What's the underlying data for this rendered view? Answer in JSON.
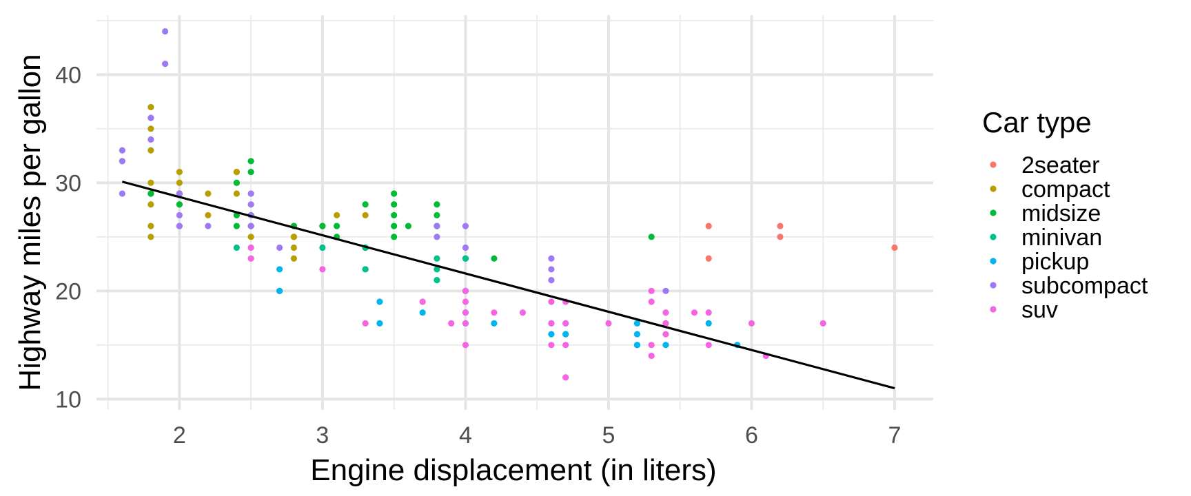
{
  "chart_data": {
    "type": "scatter",
    "title": "",
    "xlabel": "Engine displacement (in liters)",
    "ylabel": "Highway miles per gallon",
    "xlim": [
      1.42,
      7.27
    ],
    "ylim": [
      9.0,
      45.5
    ],
    "x_ticks": [
      2,
      3,
      4,
      5,
      6,
      7
    ],
    "y_ticks": [
      10,
      20,
      30,
      40
    ],
    "grid": true,
    "legend": {
      "title": "Car type",
      "placement": "right"
    },
    "trend_line": {
      "from": [
        1.6,
        30.1
      ],
      "to": [
        7.0,
        11.0
      ],
      "color": "#000000"
    },
    "series": [
      {
        "name": "2seater",
        "color": "#F8766D",
        "points": [
          [
            5.7,
            26
          ],
          [
            5.7,
            23
          ],
          [
            6.2,
            26
          ],
          [
            6.2,
            25
          ],
          [
            7.0,
            24
          ]
        ]
      },
      {
        "name": "compact",
        "color": "#B79F00",
        "points": [
          [
            1.8,
            29
          ],
          [
            1.8,
            29
          ],
          [
            2.0,
            31
          ],
          [
            2.0,
            30
          ],
          [
            2.8,
            26
          ],
          [
            2.8,
            26
          ],
          [
            3.1,
            27
          ],
          [
            1.8,
            26
          ],
          [
            1.8,
            25
          ],
          [
            1.8,
            28
          ],
          [
            2.0,
            28
          ],
          [
            2.0,
            29
          ],
          [
            2.8,
            25
          ],
          [
            2.8,
            25
          ],
          [
            2.8,
            24
          ],
          [
            2.8,
            25
          ],
          [
            3.3,
            27
          ],
          [
            2.2,
            29
          ],
          [
            2.2,
            27
          ],
          [
            2.4,
            31
          ],
          [
            2.4,
            31
          ],
          [
            3.0,
            26
          ],
          [
            3.0,
            26
          ],
          [
            2.4,
            30
          ],
          [
            2.4,
            29
          ],
          [
            1.8,
            37
          ],
          [
            1.8,
            35
          ],
          [
            1.8,
            33
          ],
          [
            1.8,
            30
          ],
          [
            2.0,
            26
          ],
          [
            2.0,
            29
          ],
          [
            2.5,
            27
          ],
          [
            2.5,
            25
          ],
          [
            2.8,
            23
          ],
          [
            2.4,
            27
          ]
        ]
      },
      {
        "name": "midsize",
        "color": "#00BA38",
        "points": [
          [
            2.4,
            26
          ],
          [
            2.4,
            27
          ],
          [
            3.1,
            26
          ],
          [
            3.5,
            28
          ],
          [
            3.6,
            26
          ],
          [
            2.5,
            32
          ],
          [
            2.5,
            31
          ],
          [
            2.5,
            27
          ],
          [
            2.4,
            30
          ],
          [
            3.0,
            26
          ],
          [
            3.5,
            27
          ],
          [
            3.3,
            28
          ],
          [
            3.5,
            26
          ],
          [
            3.8,
            28
          ],
          [
            3.8,
            26
          ],
          [
            3.8,
            26
          ],
          [
            3.5,
            29
          ],
          [
            3.5,
            25
          ],
          [
            3.1,
            25
          ],
          [
            3.8,
            27
          ],
          [
            4.2,
            23
          ],
          [
            5.3,
            25
          ],
          [
            2.8,
            26
          ],
          [
            2.0,
            28
          ],
          [
            1.8,
            29
          ],
          [
            2.5,
            26
          ],
          [
            4.0,
            23
          ],
          [
            2.0,
            29
          ]
        ]
      },
      {
        "name": "minivan",
        "color": "#00C08B",
        "points": [
          [
            2.4,
            24
          ],
          [
            3.0,
            24
          ],
          [
            3.3,
            22
          ],
          [
            3.3,
            22
          ],
          [
            3.3,
            24
          ],
          [
            3.3,
            24
          ],
          [
            3.3,
            24
          ],
          [
            3.8,
            22
          ],
          [
            3.8,
            21
          ],
          [
            3.8,
            23
          ],
          [
            4.0,
            23
          ]
        ]
      },
      {
        "name": "pickup",
        "color": "#00B4EF",
        "points": [
          [
            2.7,
            22
          ],
          [
            2.7,
            20
          ],
          [
            2.7,
            20
          ],
          [
            3.4,
            19
          ],
          [
            3.4,
            17
          ],
          [
            3.7,
            18
          ],
          [
            4.0,
            20
          ],
          [
            4.0,
            18
          ],
          [
            4.0,
            17
          ],
          [
            4.2,
            17
          ],
          [
            4.7,
            16
          ],
          [
            4.7,
            17
          ],
          [
            4.7,
            16
          ],
          [
            4.6,
            16
          ],
          [
            4.6,
            17
          ],
          [
            5.2,
            17
          ],
          [
            5.2,
            15
          ],
          [
            5.2,
            16
          ],
          [
            5.4,
            15
          ],
          [
            5.4,
            17
          ],
          [
            5.7,
            17
          ],
          [
            5.9,
            15
          ],
          [
            5.2,
            15
          ]
        ]
      },
      {
        "name": "subcompact",
        "color": "#9D7AF4",
        "points": [
          [
            1.6,
            33
          ],
          [
            1.6,
            32
          ],
          [
            1.6,
            32
          ],
          [
            1.6,
            29
          ],
          [
            1.8,
            34
          ],
          [
            1.8,
            36
          ],
          [
            1.8,
            36
          ],
          [
            1.9,
            44
          ],
          [
            1.9,
            41
          ],
          [
            2.0,
            29
          ],
          [
            2.0,
            26
          ],
          [
            2.0,
            27
          ],
          [
            2.2,
            26
          ],
          [
            2.5,
            29
          ],
          [
            2.5,
            28
          ],
          [
            2.5,
            26
          ],
          [
            2.5,
            27
          ],
          [
            2.7,
            24
          ],
          [
            3.8,
            26
          ],
          [
            3.8,
            25
          ],
          [
            4.0,
            24
          ],
          [
            4.0,
            26
          ],
          [
            4.6,
            23
          ],
          [
            4.6,
            22
          ],
          [
            4.6,
            21
          ],
          [
            5.4,
            20
          ]
        ]
      },
      {
        "name": "suv",
        "color": "#F564E3",
        "points": [
          [
            2.5,
            23
          ],
          [
            2.5,
            24
          ],
          [
            3.0,
            22
          ],
          [
            3.3,
            17
          ],
          [
            3.7,
            19
          ],
          [
            3.9,
            17
          ],
          [
            4.0,
            19
          ],
          [
            4.0,
            18
          ],
          [
            4.0,
            17
          ],
          [
            4.0,
            15
          ],
          [
            4.2,
            18
          ],
          [
            4.4,
            18
          ],
          [
            4.6,
            19
          ],
          [
            4.6,
            17
          ],
          [
            4.6,
            15
          ],
          [
            4.7,
            19
          ],
          [
            4.7,
            17
          ],
          [
            4.7,
            15
          ],
          [
            4.7,
            12
          ],
          [
            4.7,
            12
          ],
          [
            5.0,
            17
          ],
          [
            5.3,
            20
          ],
          [
            5.3,
            19
          ],
          [
            5.3,
            15
          ],
          [
            5.3,
            14
          ],
          [
            5.4,
            18
          ],
          [
            5.4,
            17
          ],
          [
            5.4,
            16
          ],
          [
            5.6,
            18
          ],
          [
            5.7,
            18
          ],
          [
            5.7,
            15
          ],
          [
            6.0,
            17
          ],
          [
            6.1,
            14
          ],
          [
            6.5,
            17
          ],
          [
            4.0,
            20
          ]
        ]
      }
    ]
  }
}
